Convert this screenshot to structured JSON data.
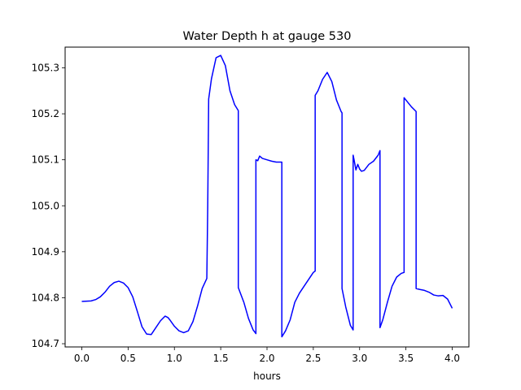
{
  "chart_data": {
    "type": "line",
    "title": "Water Depth h at gauge 530",
    "xlabel": "hours",
    "ylabel": "",
    "xlim": [
      -0.18,
      4.18
    ],
    "ylim": [
      104.693,
      105.345
    ],
    "xticks": [
      0.0,
      0.5,
      1.0,
      1.5,
      2.0,
      2.5,
      3.0,
      3.5,
      4.0
    ],
    "xtick_labels": [
      "0.0",
      "0.5",
      "1.0",
      "1.5",
      "2.0",
      "2.5",
      "3.0",
      "3.5",
      "4.0"
    ],
    "yticks": [
      104.7,
      104.8,
      104.9,
      105.0,
      105.1,
      105.2,
      105.3
    ],
    "ytick_labels": [
      "104.7",
      "104.8",
      "104.9",
      "105.0",
      "105.1",
      "105.2",
      "105.3"
    ],
    "grid": false,
    "legend": "none",
    "series": [
      {
        "color": "#0000ff",
        "x": [
          0.0,
          0.1,
          0.15,
          0.2,
          0.25,
          0.3,
          0.35,
          0.4,
          0.45,
          0.5,
          0.55,
          0.6,
          0.65,
          0.7,
          0.75,
          0.8,
          0.85,
          0.9,
          0.93,
          0.95,
          1.0,
          1.05,
          1.1,
          1.15,
          1.2,
          1.25,
          1.3,
          1.35,
          1.36,
          1.37,
          1.4,
          1.45,
          1.5,
          1.55,
          1.6,
          1.65,
          1.69,
          1.69,
          1.75,
          1.8,
          1.85,
          1.88,
          1.88,
          1.9,
          1.92,
          1.95,
          2.0,
          2.05,
          2.1,
          2.15,
          2.16,
          2.16,
          2.2,
          2.25,
          2.3,
          2.35,
          2.4,
          2.45,
          2.5,
          2.52,
          2.52,
          2.55,
          2.6,
          2.65,
          2.7,
          2.75,
          2.8,
          2.81,
          2.81,
          2.85,
          2.9,
          2.93,
          2.93,
          2.94,
          2.96,
          2.98,
          3.0,
          3.02,
          3.05,
          3.1,
          3.15,
          3.2,
          3.22,
          3.22,
          3.25,
          3.3,
          3.35,
          3.4,
          3.45,
          3.48,
          3.48,
          3.52,
          3.56,
          3.61,
          3.61,
          3.65,
          3.7,
          3.75,
          3.8,
          3.85,
          3.9,
          3.95,
          4.0
        ],
        "values": [
          104.792,
          104.793,
          104.796,
          104.802,
          104.812,
          104.825,
          104.833,
          104.836,
          104.832,
          104.822,
          104.802,
          104.77,
          104.737,
          104.721,
          104.72,
          104.735,
          104.75,
          104.76,
          104.757,
          104.752,
          104.738,
          104.728,
          104.724,
          104.728,
          104.748,
          104.782,
          104.82,
          104.842,
          105.0,
          105.232,
          105.276,
          105.322,
          105.327,
          105.305,
          105.25,
          105.22,
          105.207,
          104.822,
          104.79,
          104.755,
          104.73,
          104.722,
          105.1,
          105.098,
          105.108,
          105.103,
          105.1,
          105.097,
          105.095,
          105.095,
          105.095,
          104.715,
          104.728,
          104.752,
          104.79,
          104.81,
          104.825,
          104.84,
          104.855,
          104.858,
          105.24,
          105.25,
          105.275,
          105.29,
          105.27,
          105.23,
          105.205,
          105.202,
          104.82,
          104.78,
          104.74,
          104.73,
          105.11,
          105.1,
          105.078,
          105.09,
          105.08,
          105.075,
          105.077,
          105.09,
          105.097,
          105.11,
          105.12,
          104.735,
          104.752,
          104.79,
          104.825,
          104.845,
          104.853,
          104.855,
          105.235,
          105.225,
          105.215,
          105.205,
          104.82,
          104.818,
          104.816,
          104.812,
          104.806,
          104.804,
          104.805,
          104.797,
          104.777
        ]
      }
    ]
  }
}
